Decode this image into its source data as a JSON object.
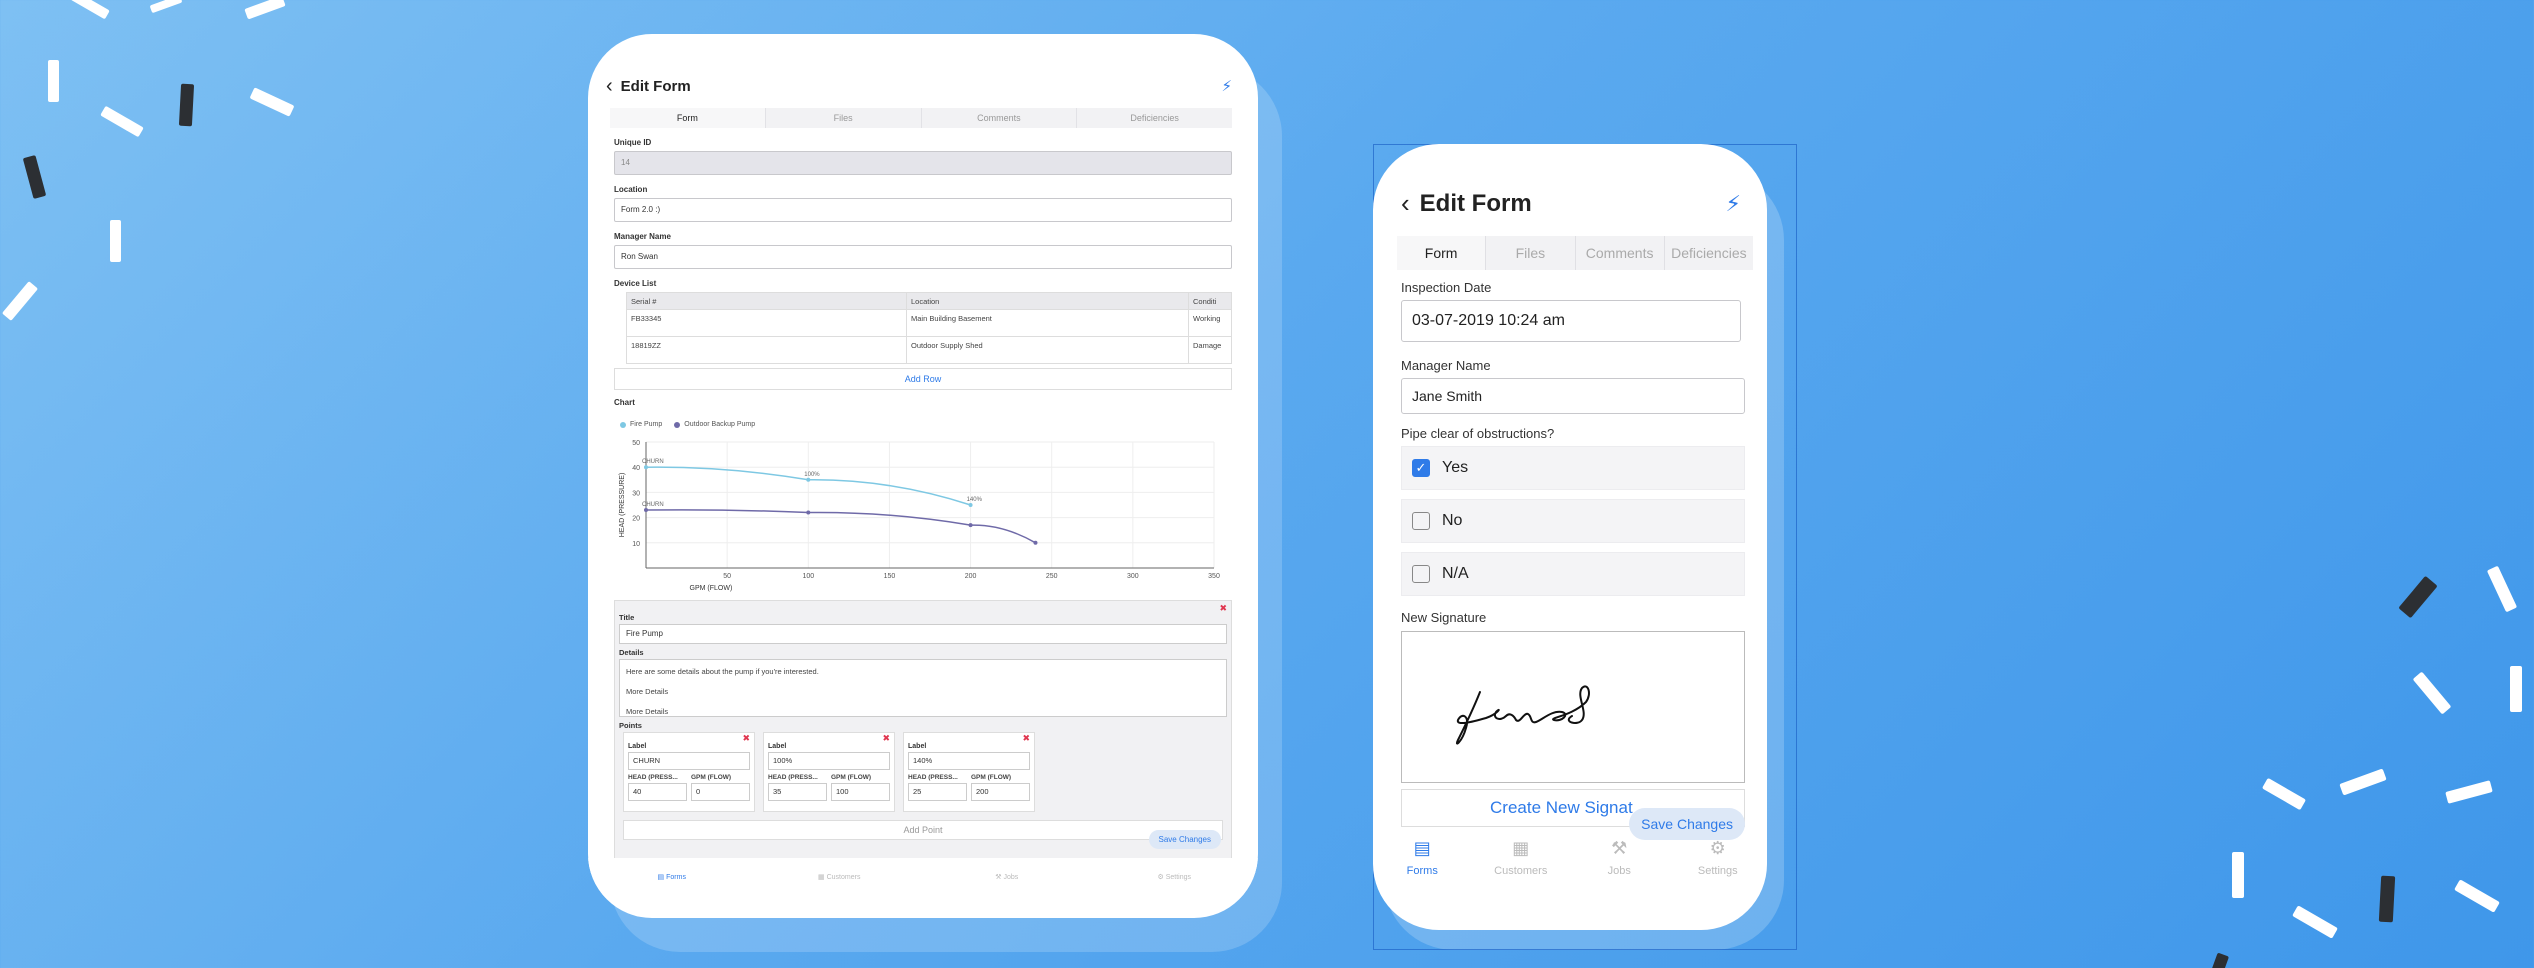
{
  "tablet": {
    "back_icon": "chevron-left-icon",
    "title": "Edit Form",
    "action_icon": "lightning-bolt-icon",
    "tabs": [
      "Form",
      "Files",
      "Comments",
      "Deficiencies"
    ],
    "unique_id": {
      "label": "Unique ID",
      "value": "14"
    },
    "location": {
      "label": "Location",
      "value": "Form 2.0 :)"
    },
    "manager": {
      "label": "Manager Name",
      "value": "Ron Swan"
    },
    "device_list": {
      "label": "Device List",
      "columns": [
        "Serial #",
        "Location",
        "Conditi"
      ],
      "rows": [
        [
          "FB33345",
          "Main Building Basement",
          "Working"
        ],
        [
          "18819ZZ",
          "Outdoor Supply Shed",
          "Damage"
        ]
      ],
      "add_row": "Add Row"
    },
    "chart_label": "Chart",
    "pump": {
      "title_label": "Title",
      "title_value": "Fire Pump",
      "details_label": "Details",
      "details_lines": [
        "Here are some details about the pump if you're interested.",
        "More Details",
        "More Details"
      ],
      "points_label": "Points",
      "points": [
        {
          "label_title": "Label",
          "label": "CHURN",
          "head_title": "HEAD (PRESS...",
          "gpm_title": "GPM (FLOW)",
          "head": "40",
          "gpm": "0"
        },
        {
          "label_title": "Label",
          "label": "100%",
          "head_title": "HEAD (PRESS...",
          "gpm_title": "GPM (FLOW)",
          "head": "35",
          "gpm": "100"
        },
        {
          "label_title": "Label",
          "label": "140%",
          "head_title": "HEAD (PRESS...",
          "gpm_title": "GPM (FLOW)",
          "head": "25",
          "gpm": "200"
        }
      ],
      "add_point": "Add Point"
    },
    "save": "Save Changes",
    "nav": [
      "Forms",
      "Customers",
      "Jobs",
      "Settings"
    ]
  },
  "chart_data": {
    "type": "line",
    "title": "",
    "xlabel": "GPM (FLOW)",
    "ylabel": "HEAD (PRESSURE)",
    "xlim": [
      0,
      350
    ],
    "ylim": [
      0,
      50
    ],
    "xticks": [
      50,
      100,
      150,
      200,
      250,
      300,
      350
    ],
    "yticks": [
      10,
      20,
      30,
      40,
      50
    ],
    "legend_position": "top-left",
    "series": [
      {
        "name": "Fire Pump",
        "color": "#7ec8e3",
        "x": [
          0,
          100,
          200
        ],
        "y": [
          40,
          35,
          25
        ],
        "labels": [
          "CHURN",
          "100%",
          "140%"
        ]
      },
      {
        "name": "Outdoor Backup Pump",
        "color": "#6f6aa8",
        "x": [
          0,
          100,
          200,
          240
        ],
        "y": [
          23,
          22,
          17,
          10
        ],
        "labels": [
          "CHURN",
          "",
          "",
          ""
        ]
      }
    ]
  },
  "phone": {
    "back_icon": "chevron-left-icon",
    "title": "Edit Form",
    "action_icon": "lightning-bolt-icon",
    "tabs": [
      "Form",
      "Files",
      "Comments",
      "Deficiencies"
    ],
    "inspection_date": {
      "label": "Inspection Date",
      "value": "03-07-2019 10:24 am"
    },
    "manager": {
      "label": "Manager Name",
      "value": "Jane Smith"
    },
    "pipe_question": "Pipe clear of obstructions?",
    "options": [
      {
        "label": "Yes",
        "checked": true
      },
      {
        "label": "No",
        "checked": false
      },
      {
        "label": "N/A",
        "checked": false
      }
    ],
    "signature_label": "New Signature",
    "create_signature": "Create New Signat",
    "save": "Save Changes",
    "nav": [
      "Forms",
      "Customers",
      "Jobs",
      "Settings"
    ]
  },
  "colors": {
    "accent": "#2f7be8",
    "background": "#5aa9ef",
    "delete": "#e0364f"
  }
}
